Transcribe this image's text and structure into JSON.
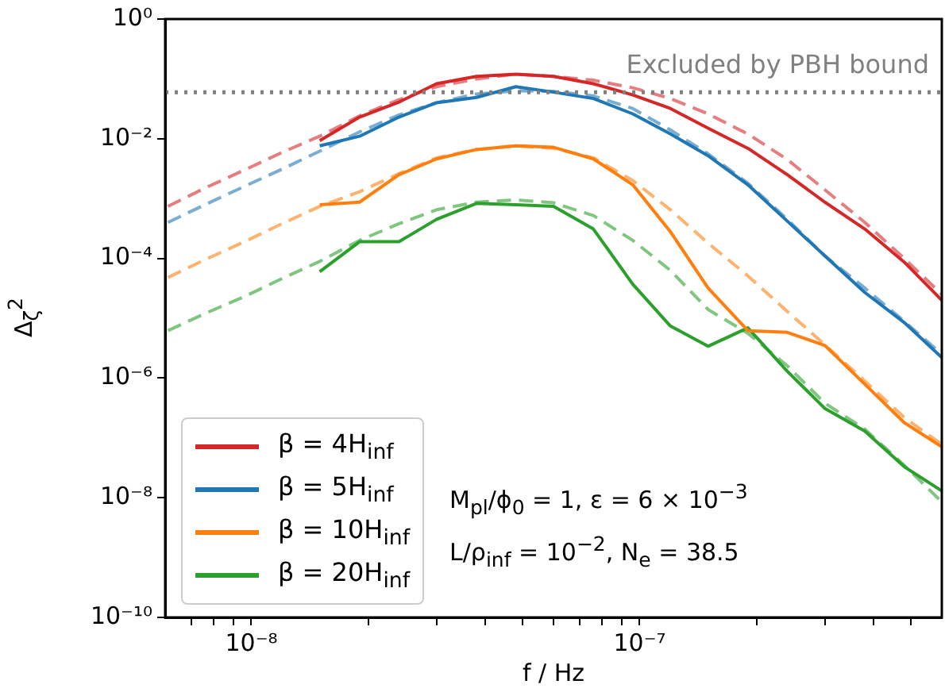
{
  "chart_data": {
    "type": "line",
    "xlabel": "f / Hz",
    "ylabel": "Δ$_{ζ}$$^{2}$",
    "log": "xy",
    "legend": "bottom left",
    "marker": "none",
    "x": [
      6.1e-09,
      7.6e-09,
      9.6e-09,
      1.2e-08,
      1.5e-08,
      1.9e-08,
      2.4e-08,
      3e-08,
      3.8e-08,
      4.8e-08,
      6e-08,
      7.6e-08,
      9.6e-08,
      1.2e-07,
      1.5e-07,
      1.9e-07,
      2.4e-07,
      3e-07,
      3.8e-07,
      4.8e-07,
      6e-07
    ],
    "xlim": [
      6e-09,
      6e-07
    ],
    "xticks": [
      {
        "value": 7e-09,
        "label": null
      },
      {
        "value": 8e-09,
        "label": null
      },
      {
        "value": 9e-09,
        "label": null
      },
      {
        "value": 1e-08,
        "label": "10⁻⁸"
      },
      {
        "value": 2e-08,
        "label": null
      },
      {
        "value": 3e-08,
        "label": null
      },
      {
        "value": 4e-08,
        "label": null
      },
      {
        "value": 5e-08,
        "label": null
      },
      {
        "value": 6e-08,
        "label": null
      },
      {
        "value": 7e-08,
        "label": null
      },
      {
        "value": 8e-08,
        "label": null
      },
      {
        "value": 9e-08,
        "label": null
      },
      {
        "value": 1e-07,
        "label": "10⁻⁷"
      },
      {
        "value": 2e-07,
        "label": null
      },
      {
        "value": 3e-07,
        "label": null
      },
      {
        "value": 4e-07,
        "label": null
      },
      {
        "value": 5e-07,
        "label": null
      }
    ],
    "ylim": [
      1e-10,
      1
    ],
    "yticks": [
      {
        "value": 1e-10,
        "label": "10⁻¹⁰"
      },
      {
        "value": 1e-08,
        "label": "10⁻⁸"
      },
      {
        "value": 1e-06,
        "label": "10⁻⁶"
      },
      {
        "value": 0.0001,
        "label": "10⁻⁴"
      },
      {
        "value": 0.01,
        "label": "10⁻²"
      },
      {
        "value": 1,
        "label": "10⁰"
      }
    ],
    "ref_lines": [
      {
        "axis": "y",
        "value": 0.06,
        "label": "Excluded by PBH bound",
        "color": "#808080",
        "line_style": "dotted"
      }
    ],
    "annotations": [
      "M$_{pl}$/ϕ$_{0}$ = 1, ε = 6 × 10$^{−3}$",
      "L/ρ$_{inf}$ = 10$^{−2}$, N$_{e}$ = 38.5"
    ],
    "series": [
      {
        "name": "β = 4H$_{inf}$",
        "color": "#d62728",
        "line_style": "solid",
        "values": [
          null,
          null,
          null,
          null,
          0.0093,
          0.023,
          0.041,
          0.083,
          0.11,
          0.12,
          0.11,
          0.083,
          0.054,
          0.032,
          0.015,
          0.0069,
          0.0025,
          0.00087,
          0.00031,
          8.7e-05,
          2e-05
        ]
      },
      {
        "name": "β = 5H$_{inf}$",
        "color": "#1f77b4",
        "line_style": "solid",
        "values": [
          null,
          null,
          null,
          null,
          0.0076,
          0.011,
          0.023,
          0.04,
          0.049,
          0.074,
          0.06,
          0.047,
          0.026,
          0.012,
          0.0052,
          0.0017,
          0.00042,
          0.00011,
          2.7e-05,
          8.5e-06,
          2.2e-06
        ]
      },
      {
        "name": "β = 10H$_{inf}$",
        "color": "#ff7f0e",
        "line_style": "solid",
        "values": [
          null,
          null,
          null,
          null,
          0.00079,
          0.00087,
          0.0025,
          0.0046,
          0.0066,
          0.0076,
          0.0072,
          0.0046,
          0.0017,
          0.00028,
          3.2e-05,
          6.2e-06,
          5.8e-06,
          3.5e-06,
          7.9e-07,
          1.8e-07,
          7.1e-08
        ]
      },
      {
        "name": "β = 20H$_{inf}$",
        "color": "#2ca02c",
        "line_style": "solid",
        "values": [
          null,
          null,
          null,
          null,
          6e-05,
          0.00019,
          0.00019,
          0.00045,
          0.00083,
          0.00079,
          0.00074,
          0.00031,
          3.7e-05,
          7.4e-06,
          3.4e-06,
          6.9e-06,
          1.3e-06,
          3.1e-07,
          1.3e-07,
          3.3e-08,
          1.3e-08
        ]
      },
      {
        "color": "#e67d7e",
        "line_style": "dashed",
        "values": [
          0.00074,
          0.0015,
          0.003,
          0.0059,
          0.011,
          0.024,
          0.045,
          0.074,
          0.1,
          0.12,
          0.11,
          0.095,
          0.071,
          0.047,
          0.026,
          0.012,
          0.0045,
          0.0014,
          0.0004,
          0.0001,
          2.5e-05
        ]
      },
      {
        "color": "#79add2",
        "line_style": "dashed",
        "values": [
          0.0004,
          0.00079,
          0.0016,
          0.0031,
          0.0062,
          0.013,
          0.025,
          0.04,
          0.056,
          0.063,
          0.062,
          0.052,
          0.032,
          0.014,
          0.0056,
          0.0018,
          0.00045,
          0.00011,
          3.2e-05,
          8.9e-06,
          2.5e-06
        ]
      },
      {
        "color": "#ffb26e",
        "line_style": "dashed",
        "values": [
          4.8e-05,
          9.5e-05,
          0.00019,
          0.00038,
          0.00074,
          0.0013,
          0.0026,
          0.0048,
          0.0066,
          0.0076,
          0.0069,
          0.0048,
          0.002,
          0.00065,
          0.00018,
          5.1e-05,
          1.3e-05,
          3.6e-06,
          8.9e-07,
          2.2e-07,
          7.8e-08
        ]
      },
      {
        "color": "#80c680",
        "line_style": "dashed",
        "values": [
          6.2e-06,
          1.2e-05,
          2.3e-05,
          4.6e-05,
          8.9e-05,
          0.0002,
          0.00038,
          0.00065,
          0.00087,
          0.00095,
          0.00085,
          0.00052,
          0.0002,
          6.3e-05,
          1.4e-05,
          5.6e-06,
          1.6e-06,
          3.8e-07,
          1.4e-07,
          3.5e-08,
          8.5e-09
        ]
      }
    ]
  }
}
